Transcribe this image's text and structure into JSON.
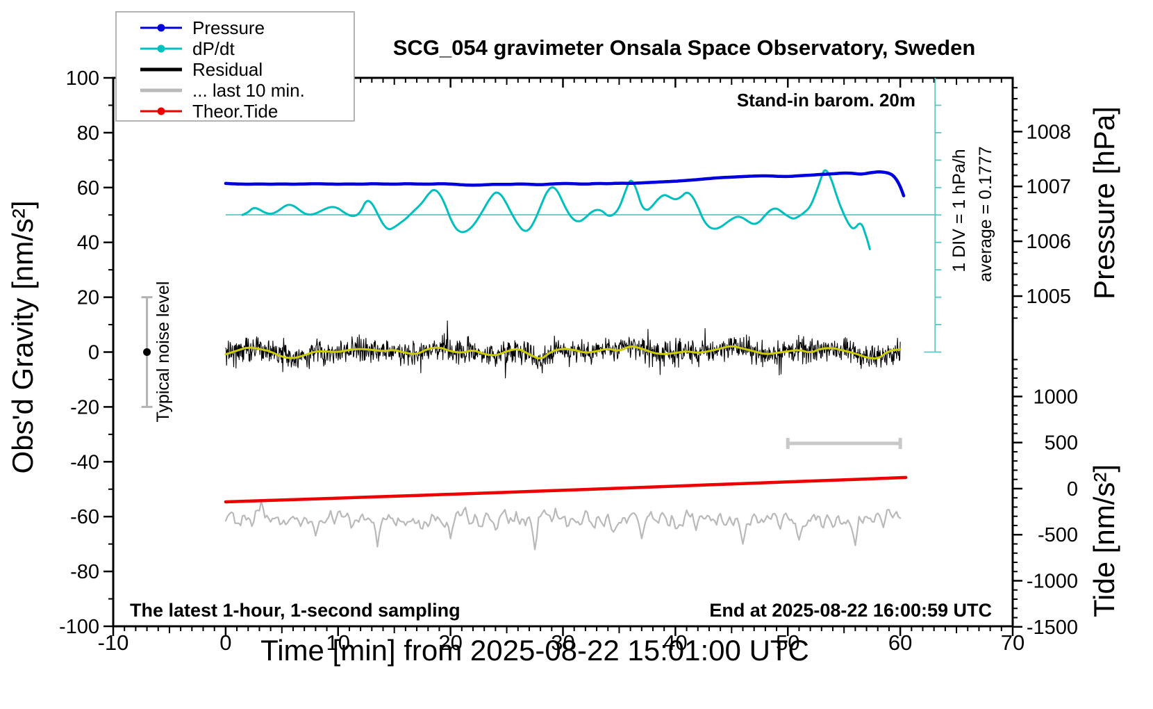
{
  "title": "SCG_054 gravimeter Onsala Space Observatory, Sweden",
  "annotations": {
    "stand_in": "Stand-in barom. 20m",
    "one_div": "1 DIV = 1 hPa/h",
    "average_label": "average = 0.1777",
    "typical_noise": "Typical noise level",
    "latest": "The latest 1-hour, 1-second sampling",
    "end_at": "End at 2025-08-22 16:00:59 UTC"
  },
  "legend": {
    "entries": [
      {
        "label": "Pressure",
        "color": "#0000dd",
        "marker": true,
        "line_width": 3
      },
      {
        "label": "dP/dt",
        "color": "#00bfbf",
        "marker": true,
        "line_width": 3
      },
      {
        "label": "Residual",
        "color": "#000000",
        "marker": false,
        "line_width": 5
      },
      {
        "label": "... last 10 min.",
        "color": "#b9b9b9",
        "marker": false,
        "line_width": 5
      },
      {
        "label": "Theor.Tide",
        "color": "#ee0000",
        "marker": true,
        "line_width": 3
      }
    ]
  },
  "chart_data": {
    "type": "line",
    "title": "SCG_054 gravimeter Onsala Space Observatory, Sweden",
    "x_axis": {
      "label": "Time [min] from 2025-08-22 15:01:00 UTC",
      "range": [
        -10,
        70
      ],
      "major_ticks": [
        -10,
        0,
        10,
        20,
        30,
        40,
        50,
        60,
        70
      ],
      "medium_step": 5,
      "minor_step": 1
    },
    "left_axis": {
      "label": "Obs'd Gravity [nm/s²]",
      "range": [
        -100,
        100
      ],
      "major_ticks": [
        -100,
        -80,
        -60,
        -40,
        -20,
        0,
        20,
        40,
        60,
        80,
        100
      ],
      "minor_step": 10
    },
    "right_pressure_axis": {
      "label": "Pressure [hPa]",
      "major_ticks": [
        1005,
        1006,
        1007,
        1008
      ],
      "minor_step": 0.2,
      "alignment": {
        "value": 1007,
        "gravity_equiv": 60.4,
        "gravity_units_per_hpa": 20
      }
    },
    "right_tide_axis": {
      "label": "Tide [nm/s²]",
      "major_ticks": [
        -1500,
        -1000,
        -500,
        0,
        500,
        1000
      ],
      "minor_step": 100,
      "alignment": {
        "value": 0,
        "gravity_equiv": -49.8,
        "gravity_units_per_unit": 0.0336
      }
    },
    "dp_dt_scale": {
      "average": 0.1777,
      "div_definition": "1 DIV = 1 hPa/h",
      "alignment": {
        "average_gravity_equiv": 50.06,
        "gravity_units_per_hpa_per_h": 20
      },
      "scalebar": {
        "x_time": 63.1,
        "gravity_top": 100,
        "gravity_bottom": 0,
        "tick_step_gravity": 10
      }
    },
    "series": [
      {
        "name": "pressure",
        "axis": "pressure_hpa",
        "color": "#0000dd",
        "width": 4.5,
        "points": [
          [
            0,
            1007.055
          ],
          [
            1,
            1007.045
          ],
          [
            2,
            1007.04
          ],
          [
            3,
            1007.045
          ],
          [
            4,
            1007.04
          ],
          [
            5,
            1007.045
          ],
          [
            6,
            1007.04
          ],
          [
            7,
            1007.045
          ],
          [
            8,
            1007.05
          ],
          [
            9,
            1007.045
          ],
          [
            10,
            1007.04
          ],
          [
            11,
            1007.045
          ],
          [
            12,
            1007.04
          ],
          [
            13,
            1007.05
          ],
          [
            14,
            1007.045
          ],
          [
            15,
            1007.04
          ],
          [
            16,
            1007.05
          ],
          [
            17,
            1007.045
          ],
          [
            18,
            1007.04
          ],
          [
            19,
            1007.05
          ],
          [
            20,
            1007.045
          ],
          [
            21,
            1007.03
          ],
          [
            22,
            1007.02
          ],
          [
            23,
            1007.03
          ],
          [
            24,
            1007.04
          ],
          [
            25,
            1007.035
          ],
          [
            26,
            1007.045
          ],
          [
            27,
            1007.04
          ],
          [
            28,
            1007.03
          ],
          [
            29,
            1007.045
          ],
          [
            30,
            1007.055
          ],
          [
            31,
            1007.05
          ],
          [
            32,
            1007.04
          ],
          [
            33,
            1007.055
          ],
          [
            34,
            1007.05
          ],
          [
            35,
            1007.06
          ],
          [
            36,
            1007.055
          ],
          [
            37,
            1007.065
          ],
          [
            38,
            1007.075
          ],
          [
            39,
            1007.085
          ],
          [
            40,
            1007.095
          ],
          [
            41,
            1007.11
          ],
          [
            42,
            1007.125
          ],
          [
            43,
            1007.145
          ],
          [
            44,
            1007.16
          ],
          [
            45,
            1007.17
          ],
          [
            46,
            1007.18
          ],
          [
            47,
            1007.19
          ],
          [
            48,
            1007.195
          ],
          [
            49,
            1007.185
          ],
          [
            50,
            1007.18
          ],
          [
            51,
            1007.195
          ],
          [
            52,
            1007.205
          ],
          [
            53,
            1007.22
          ],
          [
            54,
            1007.23
          ],
          [
            55,
            1007.245
          ],
          [
            55.8,
            1007.24
          ],
          [
            56.5,
            1007.22
          ],
          [
            57.5,
            1007.255
          ],
          [
            58.2,
            1007.27
          ],
          [
            59,
            1007.245
          ],
          [
            59.5,
            1007.18
          ],
          [
            60,
            1007.005
          ],
          [
            60.3,
            1006.83
          ]
        ]
      },
      {
        "name": "dp_dt",
        "axis": "hpa_per_hour",
        "color": "#00bfbf",
        "width": 3,
        "points": [
          [
            1.5,
            0.175
          ],
          [
            2,
            0.225
          ],
          [
            2.5,
            0.315
          ],
          [
            3,
            0.275
          ],
          [
            3.5,
            0.215
          ],
          [
            4,
            0.19
          ],
          [
            4.5,
            0.225
          ],
          [
            5,
            0.3
          ],
          [
            5.5,
            0.365
          ],
          [
            6,
            0.35
          ],
          [
            6.5,
            0.275
          ],
          [
            7,
            0.2
          ],
          [
            7.5,
            0.175
          ],
          [
            8,
            0.2
          ],
          [
            8.5,
            0.25
          ],
          [
            9,
            0.3
          ],
          [
            9.5,
            0.325
          ],
          [
            10,
            0.3
          ],
          [
            10.5,
            0.225
          ],
          [
            11,
            0.165
          ],
          [
            11.5,
            0.15
          ],
          [
            12,
            0.225
          ],
          [
            12.5,
            0.45
          ],
          [
            13,
            0.4
          ],
          [
            13.5,
            0.2
          ],
          [
            14,
            0.0
          ],
          [
            14.5,
            -0.1
          ],
          [
            15,
            -0.05
          ],
          [
            15.5,
            0.025
          ],
          [
            16,
            0.1
          ],
          [
            16.5,
            0.2
          ],
          [
            17,
            0.3
          ],
          [
            17.5,
            0.4
          ],
          [
            18,
            0.55
          ],
          [
            18.5,
            0.65
          ],
          [
            19,
            0.575
          ],
          [
            19.5,
            0.375
          ],
          [
            20,
            0.1
          ],
          [
            20.5,
            -0.085
          ],
          [
            21,
            -0.15
          ],
          [
            21.5,
            -0.115
          ],
          [
            22,
            -0.025
          ],
          [
            22.5,
            0.125
          ],
          [
            23,
            0.3
          ],
          [
            23.5,
            0.475
          ],
          [
            24,
            0.6
          ],
          [
            24.5,
            0.55
          ],
          [
            25,
            0.375
          ],
          [
            25.5,
            0.175
          ],
          [
            26,
            0.0
          ],
          [
            26.5,
            -0.125
          ],
          [
            27,
            -0.1
          ],
          [
            27.5,
            0.075
          ],
          [
            28,
            0.325
          ],
          [
            28.5,
            0.575
          ],
          [
            29,
            0.7
          ],
          [
            29.5,
            0.625
          ],
          [
            30,
            0.4
          ],
          [
            30.5,
            0.2
          ],
          [
            31,
            0.075
          ],
          [
            31.5,
            0.05
          ],
          [
            32,
            0.125
          ],
          [
            32.5,
            0.225
          ],
          [
            33,
            0.275
          ],
          [
            33.5,
            0.25
          ],
          [
            34,
            0.15
          ],
          [
            34.5,
            0.175
          ],
          [
            35,
            0.3
          ],
          [
            35.5,
            0.575
          ],
          [
            36,
            0.85
          ],
          [
            36.5,
            0.675
          ],
          [
            37,
            0.325
          ],
          [
            37.5,
            0.25
          ],
          [
            38,
            0.35
          ],
          [
            38.5,
            0.475
          ],
          [
            39,
            0.55
          ],
          [
            39.5,
            0.5
          ],
          [
            40,
            0.45
          ],
          [
            40.5,
            0.5
          ],
          [
            41,
            0.6
          ],
          [
            41.5,
            0.525
          ],
          [
            42,
            0.325
          ],
          [
            42.5,
            0.075
          ],
          [
            43,
            -0.05
          ],
          [
            43.5,
            -0.085
          ],
          [
            44,
            -0.05
          ],
          [
            44.5,
            0.025
          ],
          [
            45,
            0.1
          ],
          [
            45.5,
            0.15
          ],
          [
            46,
            0.125
          ],
          [
            46.5,
            0.05
          ],
          [
            47,
            0.0
          ],
          [
            47.5,
            0.05
          ],
          [
            48,
            0.175
          ],
          [
            48.5,
            0.275
          ],
          [
            49,
            0.3
          ],
          [
            49.5,
            0.225
          ],
          [
            50,
            0.15
          ],
          [
            50.5,
            0.1
          ],
          [
            51,
            0.15
          ],
          [
            51.5,
            0.225
          ],
          [
            52,
            0.325
          ],
          [
            52.5,
            0.575
          ],
          [
            53,
            0.875
          ],
          [
            53.3,
            1.025
          ],
          [
            53.8,
            0.875
          ],
          [
            54.5,
            0.425
          ],
          [
            55,
            0.175
          ],
          [
            55.5,
            -0.025
          ],
          [
            55.9,
            -0.09
          ],
          [
            56.5,
            0.065
          ],
          [
            57,
            -0.23
          ],
          [
            57.3,
            -0.45
          ]
        ]
      },
      {
        "name": "residual_smooth",
        "axis": "gravity_nm_s2",
        "color": "#cccc00",
        "width": 3,
        "points": [
          [
            0,
            -0.8
          ],
          [
            1,
            0.5
          ],
          [
            2,
            1.8
          ],
          [
            3,
            1.2
          ],
          [
            4,
            0.2
          ],
          [
            5,
            -1.8
          ],
          [
            6,
            -2.3
          ],
          [
            7,
            -1.2
          ],
          [
            8,
            0.3
          ],
          [
            9,
            0.2
          ],
          [
            10,
            0.0
          ],
          [
            11,
            0.8
          ],
          [
            12,
            1.2
          ],
          [
            13,
            0.8
          ],
          [
            14,
            0.3
          ],
          [
            15,
            0.8
          ],
          [
            16,
            -0.3
          ],
          [
            17,
            -0.8
          ],
          [
            18,
            1.2
          ],
          [
            19,
            1.8
          ],
          [
            20,
            0.3
          ],
          [
            21,
            -0.3
          ],
          [
            22,
            0.8
          ],
          [
            23,
            -0.8
          ],
          [
            24,
            -1.3
          ],
          [
            25,
            0.3
          ],
          [
            26,
            1.3
          ],
          [
            27,
            -0.8
          ],
          [
            28,
            -2.8
          ],
          [
            29,
            0.3
          ],
          [
            30,
            1.3
          ],
          [
            31,
            0.8
          ],
          [
            32,
            -0.3
          ],
          [
            33,
            0.3
          ],
          [
            34,
            1.3
          ],
          [
            35,
            0.3
          ],
          [
            36,
            2.3
          ],
          [
            37,
            1.3
          ],
          [
            38,
            -0.3
          ],
          [
            39,
            -0.8
          ],
          [
            40,
            -0.3
          ],
          [
            41,
            0.3
          ],
          [
            42,
            -0.3
          ],
          [
            43,
            0.3
          ],
          [
            44,
            1.3
          ],
          [
            45,
            2.3
          ],
          [
            46,
            1.3
          ],
          [
            47,
            0.3
          ],
          [
            48,
            -0.8
          ],
          [
            49,
            -0.3
          ],
          [
            50,
            0.3
          ],
          [
            51,
            0.8
          ],
          [
            52,
            -0.3
          ],
          [
            53,
            1.3
          ],
          [
            54,
            1.5
          ],
          [
            55,
            0.5
          ],
          [
            56,
            -0.5
          ],
          [
            57,
            -2.0
          ],
          [
            58,
            -2.5
          ],
          [
            59,
            0.5
          ],
          [
            60,
            1.0
          ]
        ]
      },
      {
        "name": "residual_1s_noise",
        "axis": "gravity_nm_s2",
        "color": "#000000",
        "width": 1.1,
        "estimated_from_pixels": true,
        "band_halfwidth": 7,
        "spike_max": 11,
        "seed": 42,
        "n_points": 1500
      },
      {
        "name": "last_10_min",
        "axis": "gravity_nm_s2_display",
        "color": "#b9b9b9",
        "width": 2.2,
        "baseline": -61,
        "amplitude": 2.2,
        "seed": 7,
        "n_points": 360,
        "features": [
          [
            3.2,
            -53.5
          ],
          [
            8,
            -67
          ],
          [
            13.5,
            -71
          ],
          [
            20,
            -68
          ],
          [
            27.5,
            -72
          ],
          [
            37,
            -68
          ],
          [
            46,
            -70
          ],
          [
            51,
            -68.5
          ],
          [
            56,
            -70.5
          ]
        ]
      },
      {
        "name": "theor_tide",
        "axis": "tide_nm_s2",
        "color": "#ee0000",
        "width": 4.5,
        "points": [
          [
            0,
            -144
          ],
          [
            15,
            -83
          ],
          [
            30,
            -18
          ],
          [
            45,
            50
          ],
          [
            60.5,
            121
          ]
        ]
      }
    ],
    "noise_marker": {
      "label": "Typical noise level",
      "x_time": -7,
      "center_gravity": 0,
      "half_range_gravity": 20,
      "bar_color": "#b3b3b3",
      "dot_color": "#000000"
    },
    "last10_scalebar": {
      "x_start_time": 50,
      "x_end_time": 60,
      "gravity_y": -33.3,
      "color": "#c8c8c8"
    },
    "avg_line": {
      "color": "#5cc6c6",
      "x_start_time": 0,
      "x_end_time": 63.1
    },
    "grid": false,
    "legend_position": "top-left"
  }
}
